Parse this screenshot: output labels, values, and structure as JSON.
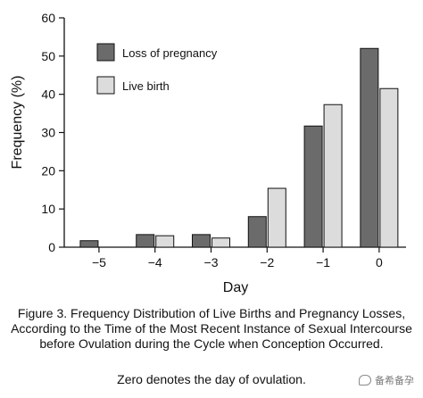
{
  "chart_data": {
    "type": "bar",
    "xlabel": "Day",
    "ylabel": "Frequency (%)",
    "ylim": [
      0,
      60
    ],
    "yticks": [
      0,
      10,
      20,
      30,
      40,
      50,
      60
    ],
    "categories": [
      "−5",
      "−4",
      "−3",
      "−2",
      "−1",
      "0"
    ],
    "series": [
      {
        "name": "Loss of pregnancy",
        "color": "#6b6b6b",
        "values": [
          1.7,
          3.3,
          3.3,
          8.0,
          31.7,
          52.0
        ]
      },
      {
        "name": "Live birth",
        "color": "#dcdcdc",
        "values": [
          0,
          3.0,
          2.4,
          15.4,
          37.3,
          41.5
        ]
      }
    ],
    "legend": "top-left",
    "grid": false
  },
  "caption": {
    "main": "Figure 3. Frequency Distribution of Live Births and Pregnancy Losses, According to the Time of the Most Recent Instance of Sexual Intercourse before Ovulation during the Cycle when Conception Occurred.",
    "note": "Zero denotes the day of ovulation."
  },
  "watermark": {
    "text": "备希备孕",
    "icon": "chat-bubble-icon"
  }
}
